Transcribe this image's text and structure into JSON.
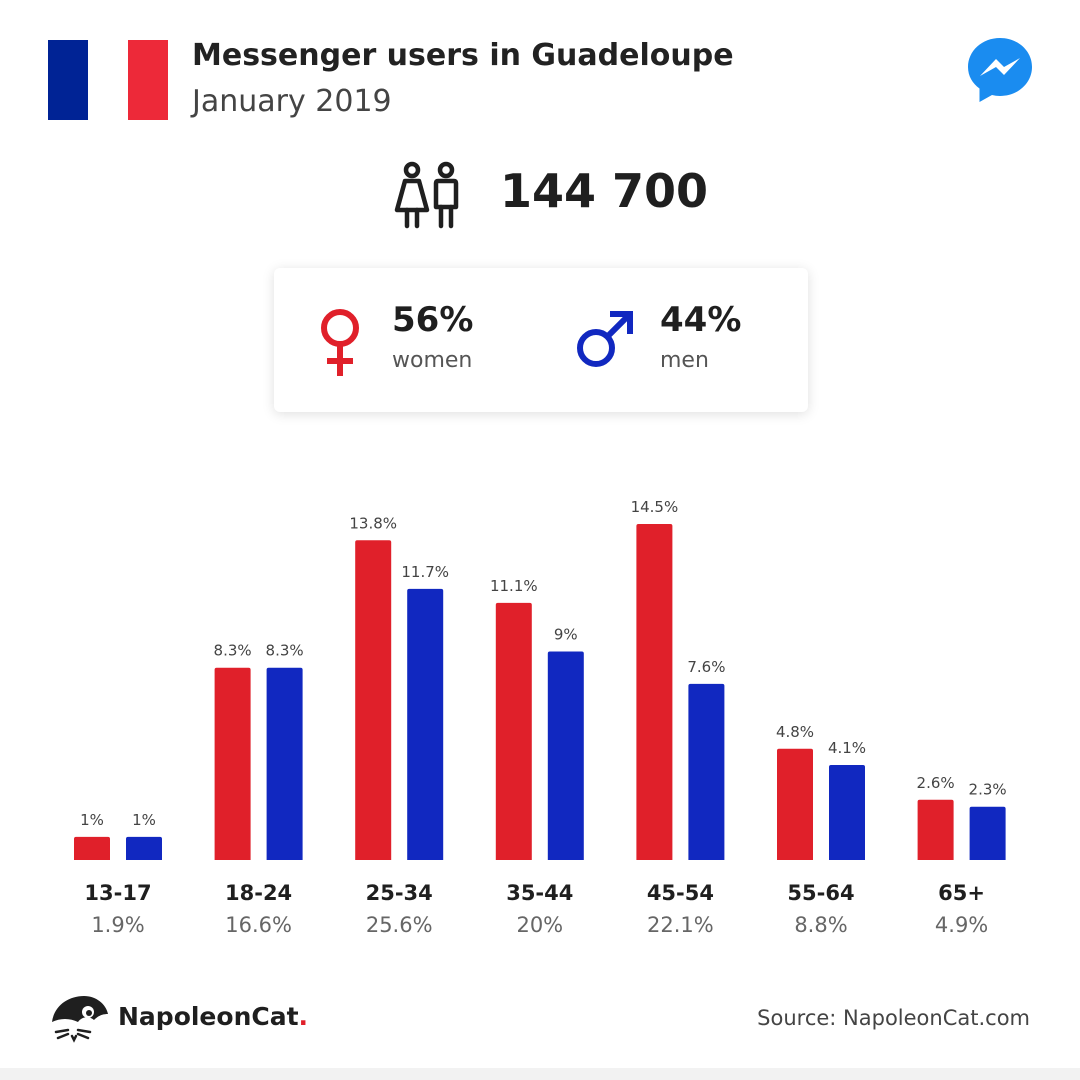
{
  "header": {
    "title": "Messenger users in Guadeloupe",
    "subtitle": "January 2019",
    "flag_colors": [
      "#002395",
      "#ffffff",
      "#ed2939"
    ],
    "app_icon": "messenger-icon"
  },
  "summary": {
    "total_users": "144 700",
    "women_pct": "56%",
    "women_label": "women",
    "men_pct": "44%",
    "men_label": "men"
  },
  "colors": {
    "women": "#e0202a",
    "men": "#1128c0"
  },
  "footer": {
    "brand": "NapoleonCat",
    "brand_dot": ".",
    "source": "Source: NapoleonCat.com"
  },
  "chart_data": {
    "type": "bar",
    "categories": [
      "13-17",
      "18-24",
      "25-34",
      "35-44",
      "45-54",
      "55-64",
      "65+"
    ],
    "group_totals": [
      "1.9%",
      "16.6%",
      "25.6%",
      "20%",
      "22.1%",
      "8.8%",
      "4.9%"
    ],
    "series": [
      {
        "values": [
          1,
          8.3,
          13.8,
          11.1,
          14.5,
          4.8,
          2.6
        ],
        "labels": [
          "1%",
          "8.3%",
          "13.8%",
          "11.1%",
          "14.5%",
          "4.8%",
          "2.6%"
        ],
        "color": "#e0202a"
      },
      {
        "values": [
          1,
          8.3,
          11.7,
          9,
          7.6,
          4.1,
          2.3
        ],
        "labels": [
          "1%",
          "8.3%",
          "11.7%",
          "9%",
          "7.6%",
          "4.1%",
          "2.3%"
        ],
        "color": "#1128c0"
      }
    ],
    "grid": false,
    "legend": "none"
  }
}
